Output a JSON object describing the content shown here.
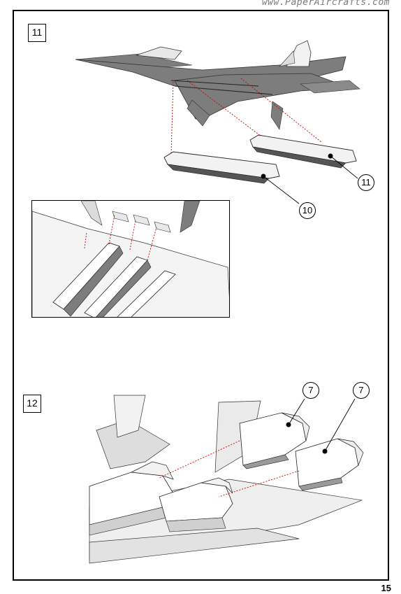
{
  "watermark": "www.PaperAircrafts.com",
  "page_number": "15",
  "steps": [
    {
      "number": "11",
      "callouts": [
        "11",
        "10"
      ]
    },
    {
      "number": "12",
      "callouts": [
        "7",
        "7"
      ]
    }
  ],
  "colors": {
    "fuselage_gray": "#7d7d7d",
    "light_part": "#f2f2f2",
    "guide_arrow": "#cc0000",
    "outline": "#000000"
  }
}
